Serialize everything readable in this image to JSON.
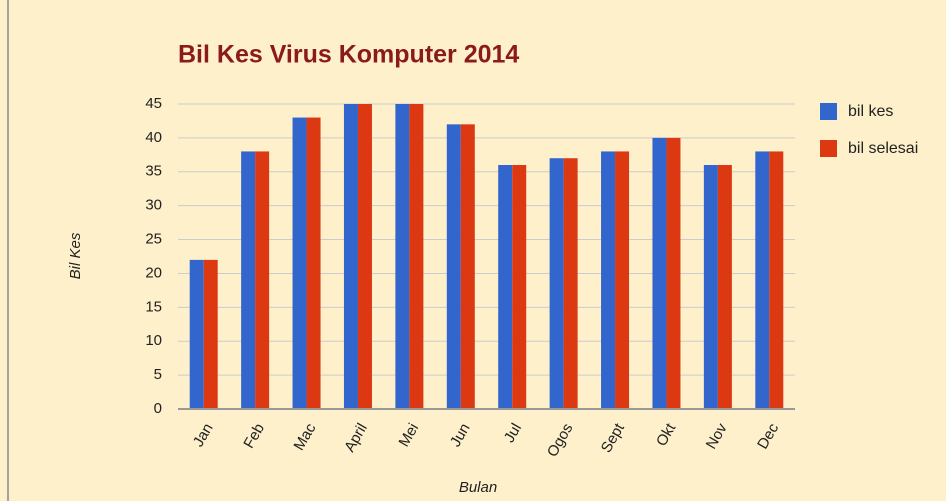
{
  "chart_data": {
    "type": "bar",
    "title": "Bil Kes Virus Komputer 2014",
    "x_label": "Bulan",
    "y_label": "Bil Kes",
    "categories": [
      "Jan",
      "Feb",
      "Mac",
      "April",
      "Mei",
      "Jun",
      "Jul",
      "Ogos",
      "Sept",
      "Okt",
      "Nov",
      "Dec"
    ],
    "series": [
      {
        "name": "bil kes",
        "color": "#3366cc",
        "values": [
          22,
          38,
          43,
          45,
          45,
          42,
          36,
          37,
          38,
          40,
          36,
          38
        ]
      },
      {
        "name": "bil selesai",
        "color": "#dc3912",
        "values": [
          22,
          38,
          43,
          45,
          45,
          42,
          36,
          37,
          38,
          40,
          36,
          38
        ]
      }
    ],
    "ylim": [
      0,
      45
    ],
    "yticks": [
      0,
      5,
      10,
      15,
      20,
      25,
      30,
      35,
      40,
      45
    ],
    "grid": true,
    "legend": "right"
  }
}
